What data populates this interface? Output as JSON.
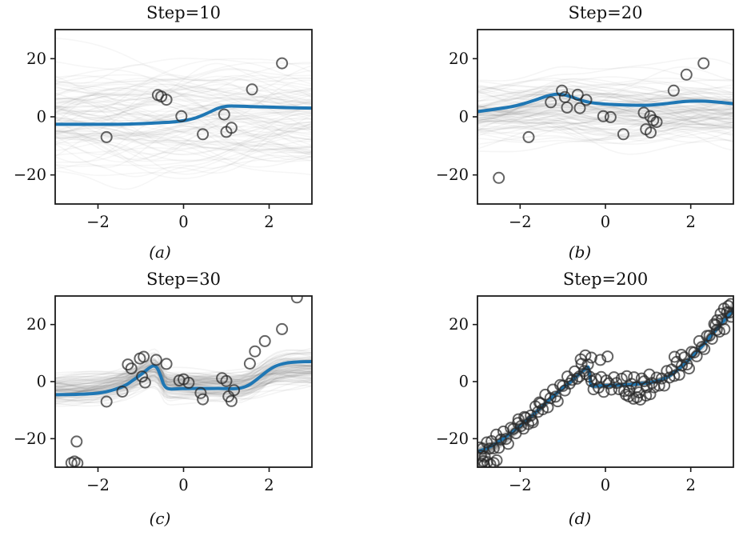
{
  "styles": {
    "background": "#ffffff",
    "mean_color": "#1f77b4",
    "mean_width": 4,
    "scatter_edge_color": "rgba(40,40,40,0.72)",
    "scatter_radius": 6.5,
    "scatter_stroke_width": 2,
    "ensemble_color": "#7a7a7a",
    "axis_color": "#1a1a1a",
    "axis_width": 1.8,
    "tick_width": 1.6,
    "tick_length": 6,
    "tick_label_color": "#111111",
    "tick_label_size": 19.5
  },
  "chart_data": [
    {
      "id": "a",
      "type": "line+scatter",
      "title": "Step=10",
      "caption": "(a)",
      "xlim": [
        -3,
        3
      ],
      "ylim": [
        -30,
        30
      ],
      "grid": false,
      "legend": null,
      "xticks": [
        {
          "v": -2,
          "label": "−2"
        },
        {
          "v": 0,
          "label": "0"
        },
        {
          "v": 2,
          "label": "2"
        }
      ],
      "yticks": [
        {
          "v": 20,
          "label": "20"
        },
        {
          "v": 0,
          "label": "0"
        },
        {
          "v": -20,
          "label": "−20"
        }
      ],
      "mean_line": [
        [
          -3,
          -2.6
        ],
        [
          -2.4,
          -2.6
        ],
        [
          -1.8,
          -2.6
        ],
        [
          -1.3,
          -2.5
        ],
        [
          -0.9,
          -2.3
        ],
        [
          -0.5,
          -2.0
        ],
        [
          -0.2,
          -1.7
        ],
        [
          0.05,
          -1.2
        ],
        [
          0.3,
          -0.3
        ],
        [
          0.55,
          1.2
        ],
        [
          0.8,
          2.9
        ],
        [
          1.0,
          3.6
        ],
        [
          1.2,
          3.7
        ],
        [
          1.6,
          3.5
        ],
        [
          2.1,
          3.3
        ],
        [
          2.6,
          3.1
        ],
        [
          3,
          3.0
        ]
      ],
      "scatter": [
        [
          -1.8,
          -7
        ],
        [
          -0.6,
          7.5
        ],
        [
          -0.52,
          7.0
        ],
        [
          -0.4,
          5.9
        ],
        [
          -0.05,
          0.2
        ],
        [
          0.45,
          -6
        ],
        [
          0.95,
          0.8
        ],
        [
          1.0,
          -5.2
        ],
        [
          1.12,
          -3.8
        ],
        [
          1.6,
          9.4
        ],
        [
          2.3,
          18.4
        ]
      ],
      "ensemble": {
        "count": 100,
        "seed": 3,
        "blend": 0.12,
        "base_sd": 10,
        "wiggle_amp": 7.5,
        "scale_jitter": 0.1,
        "alpha": 0.065,
        "width": 1.6
      }
    },
    {
      "id": "b",
      "type": "line+scatter",
      "title": "Step=20",
      "caption": "(b)",
      "xlim": [
        -3,
        3
      ],
      "ylim": [
        -30,
        30
      ],
      "grid": false,
      "legend": null,
      "xticks": [
        {
          "v": -2,
          "label": "−2"
        },
        {
          "v": 0,
          "label": "0"
        },
        {
          "v": 2,
          "label": "2"
        }
      ],
      "yticks": [
        {
          "v": 20,
          "label": "20"
        },
        {
          "v": 0,
          "label": "0"
        },
        {
          "v": -20,
          "label": "−20"
        }
      ],
      "mean_line": [
        [
          -3,
          1.8
        ],
        [
          -2.6,
          2.6
        ],
        [
          -2.2,
          3.5
        ],
        [
          -1.9,
          4.6
        ],
        [
          -1.6,
          6.0
        ],
        [
          -1.35,
          7.2
        ],
        [
          -1.15,
          7.8
        ],
        [
          -0.95,
          7.5
        ],
        [
          -0.75,
          6.6
        ],
        [
          -0.55,
          5.6
        ],
        [
          -0.35,
          4.9
        ],
        [
          -0.1,
          4.5
        ],
        [
          0.2,
          4.2
        ],
        [
          0.6,
          4.0
        ],
        [
          1.0,
          4.0
        ],
        [
          1.4,
          4.5
        ],
        [
          1.8,
          5.2
        ],
        [
          2.2,
          5.4
        ],
        [
          2.6,
          5.1
        ],
        [
          3,
          4.5
        ]
      ],
      "scatter": [
        [
          -2.5,
          -21
        ],
        [
          -1.8,
          -7
        ],
        [
          -1.28,
          5
        ],
        [
          -1.02,
          9
        ],
        [
          -0.95,
          6.8
        ],
        [
          -0.9,
          3.2
        ],
        [
          -0.65,
          7.6
        ],
        [
          -0.6,
          3
        ],
        [
          -0.45,
          5.8
        ],
        [
          -0.05,
          0.2
        ],
        [
          0.12,
          -0.1
        ],
        [
          0.42,
          -6
        ],
        [
          0.9,
          1.4
        ],
        [
          1.05,
          0.2
        ],
        [
          1.12,
          -1.2
        ],
        [
          1.2,
          -1.8
        ],
        [
          0.95,
          -4.3
        ],
        [
          1.06,
          -5.4
        ],
        [
          1.6,
          9
        ],
        [
          1.9,
          14.5
        ],
        [
          2.3,
          18.4
        ]
      ],
      "ensemble": {
        "count": 100,
        "seed": 7,
        "blend": 0.38,
        "base_sd": 6,
        "wiggle_amp": 5,
        "scale_jitter": 0.15,
        "alpha": 0.075,
        "width": 1.6
      }
    },
    {
      "id": "c",
      "type": "line+scatter",
      "title": "Step=30",
      "caption": "(c)",
      "xlim": [
        -3,
        3
      ],
      "ylim": [
        -30,
        30
      ],
      "grid": false,
      "legend": null,
      "xticks": [
        {
          "v": -2,
          "label": "−2"
        },
        {
          "v": 0,
          "label": "0"
        },
        {
          "v": 2,
          "label": "2"
        }
      ],
      "yticks": [
        {
          "v": 20,
          "label": "20"
        },
        {
          "v": 0,
          "label": "0"
        },
        {
          "v": -20,
          "label": "−20"
        }
      ],
      "mean_line": [
        [
          -3,
          -4.6
        ],
        [
          -2.6,
          -4.5
        ],
        [
          -2.2,
          -4.3
        ],
        [
          -1.9,
          -3.8
        ],
        [
          -1.6,
          -2.7
        ],
        [
          -1.35,
          -1.2
        ],
        [
          -1.15,
          0.8
        ],
        [
          -0.95,
          3.0
        ],
        [
          -0.8,
          4.8
        ],
        [
          -0.7,
          5.5
        ],
        [
          -0.62,
          4.8
        ],
        [
          -0.54,
          2.2
        ],
        [
          -0.47,
          -0.8
        ],
        [
          -0.4,
          -2.2
        ],
        [
          -0.3,
          -2.6
        ],
        [
          -0.1,
          -2.5
        ],
        [
          0.2,
          -2.4
        ],
        [
          0.6,
          -2.4
        ],
        [
          0.9,
          -2.4
        ],
        [
          1.15,
          -2.5
        ],
        [
          1.35,
          -2.2
        ],
        [
          1.55,
          -1.0
        ],
        [
          1.75,
          1.2
        ],
        [
          1.95,
          3.6
        ],
        [
          2.15,
          5.4
        ],
        [
          2.4,
          6.5
        ],
        [
          2.7,
          6.9
        ],
        [
          3,
          7.0
        ]
      ],
      "scatter": [
        [
          -2.62,
          -28.5
        ],
        [
          -2.55,
          -28
        ],
        [
          -2.48,
          -28.6
        ],
        [
          -2.5,
          -21
        ],
        [
          -1.8,
          -7
        ],
        [
          -1.43,
          -3.5
        ],
        [
          -1.3,
          6
        ],
        [
          -1.22,
          4.6
        ],
        [
          -1.02,
          8.1
        ],
        [
          -0.93,
          8.7
        ],
        [
          -0.97,
          1.8
        ],
        [
          -0.9,
          -0.3
        ],
        [
          -0.64,
          7.6
        ],
        [
          -0.4,
          6.2
        ],
        [
          -0.1,
          0.4
        ],
        [
          0.0,
          0.8
        ],
        [
          0.12,
          -0.4
        ],
        [
          0.4,
          -4
        ],
        [
          0.45,
          -6.2
        ],
        [
          0.9,
          1.2
        ],
        [
          1.0,
          0.2
        ],
        [
          1.05,
          -5.2
        ],
        [
          1.12,
          -6.8
        ],
        [
          1.18,
          -3
        ],
        [
          1.55,
          6.3
        ],
        [
          1.67,
          10.6
        ],
        [
          1.9,
          14.2
        ],
        [
          2.3,
          18.4
        ],
        [
          2.65,
          29.5
        ]
      ],
      "ensemble": {
        "count": 100,
        "seed": 11,
        "blend": 0.68,
        "base_sd": 3.8,
        "wiggle_amp": 3.6,
        "scale_jitter": 0.3,
        "alpha": 0.085,
        "width": 1.6
      }
    },
    {
      "id": "d",
      "type": "line+scatter",
      "title": "Step=200",
      "caption": "(d)",
      "xlim": [
        -3,
        3
      ],
      "ylim": [
        -30,
        30
      ],
      "grid": false,
      "legend": null,
      "xticks": [
        {
          "v": -2,
          "label": "−2"
        },
        {
          "v": 0,
          "label": "0"
        },
        {
          "v": 2,
          "label": "2"
        }
      ],
      "yticks": [
        {
          "v": 20,
          "label": "20"
        },
        {
          "v": 0,
          "label": "0"
        },
        {
          "v": -20,
          "label": "−20"
        }
      ],
      "mean_line": [
        [
          -3,
          -24.5
        ],
        [
          -2.8,
          -23.5
        ],
        [
          -2.6,
          -22.0
        ],
        [
          -2.4,
          -20.0
        ],
        [
          -2.2,
          -17.8
        ],
        [
          -2.0,
          -15.5
        ],
        [
          -1.8,
          -13.0
        ],
        [
          -1.6,
          -10.3
        ],
        [
          -1.4,
          -7.5
        ],
        [
          -1.2,
          -4.8
        ],
        [
          -1.0,
          -2.2
        ],
        [
          -0.85,
          -0.5
        ],
        [
          -0.7,
          1.5
        ],
        [
          -0.55,
          3.5
        ],
        [
          -0.45,
          4.6
        ],
        [
          -0.4,
          4.9
        ],
        [
          -0.36,
          1.0
        ],
        [
          -0.33,
          -1.4
        ],
        [
          -0.2,
          -1.5
        ],
        [
          0,
          -1.4
        ],
        [
          0.3,
          -1.2
        ],
        [
          0.6,
          -1.0
        ],
        [
          0.9,
          -0.6
        ],
        [
          1.1,
          -0.2
        ],
        [
          1.3,
          0.6
        ],
        [
          1.5,
          2.0
        ],
        [
          1.7,
          4.2
        ],
        [
          1.9,
          6.8
        ],
        [
          2.1,
          9.8
        ],
        [
          2.3,
          13.0
        ],
        [
          2.5,
          16.5
        ],
        [
          2.7,
          20.0
        ],
        [
          2.85,
          22.5
        ],
        [
          3,
          25.0
        ]
      ],
      "scatter": [
        [
          -2.95,
          -23.1
        ],
        [
          -2.92,
          -25.9
        ],
        [
          -2.88,
          -23.5
        ],
        [
          -2.83,
          -26.3
        ],
        [
          -2.78,
          -21.3
        ],
        [
          -2.72,
          -23.5
        ],
        [
          -2.67,
          -20.9
        ],
        [
          -2.62,
          -23.4
        ],
        [
          -2.56,
          -18.6
        ],
        [
          -2.5,
          -23.2
        ],
        [
          -2.45,
          -20.3
        ],
        [
          -2.39,
          -17.5
        ],
        [
          -2.33,
          -20.1
        ],
        [
          -2.28,
          -21.8
        ],
        [
          -2.22,
          -16.2
        ],
        [
          -2.16,
          -16.6
        ],
        [
          -2.1,
          -18.1
        ],
        [
          -2.04,
          -13.2
        ],
        [
          -1.98,
          -15.6
        ],
        [
          -1.92,
          -16.5
        ],
        [
          -1.87,
          -12.7
        ],
        [
          -1.81,
          -14.9
        ],
        [
          -1.75,
          -11.9
        ],
        [
          -1.7,
          -14.3
        ],
        [
          -1.64,
          -8.7
        ],
        [
          -1.58,
          -10.6
        ],
        [
          -1.52,
          -7.6
        ],
        [
          -1.47,
          -9.7
        ],
        [
          -1.41,
          -4.6
        ],
        [
          -1.35,
          -9.0
        ],
        [
          -1.29,
          -5.8
        ],
        [
          -1.23,
          -2.8
        ],
        [
          -1.17,
          -5.3
        ],
        [
          -1.12,
          -6.9
        ],
        [
          -1.06,
          -1.2
        ],
        [
          -1.0,
          -1.5
        ],
        [
          -0.95,
          -3.1
        ],
        [
          -0.89,
          1.8
        ],
        [
          -0.84,
          -0.7
        ],
        [
          -0.78,
          0.6
        ],
        [
          -0.72,
          3.6
        ],
        [
          -0.67,
          1.0
        ],
        [
          -0.61,
          1.8
        ],
        [
          -0.56,
          6.2
        ],
        [
          -0.5,
          3.7
        ],
        [
          -0.45,
          2.6
        ],
        [
          -0.41,
          6.0
        ],
        [
          -0.37,
          1.7
        ],
        [
          -0.33,
          0.2
        ],
        [
          -0.28,
          -2.7
        ],
        [
          -0.22,
          0.9
        ],
        [
          -0.16,
          -2.1
        ],
        [
          -0.1,
          1.6
        ],
        [
          -0.04,
          -3.6
        ],
        [
          0.02,
          0.4
        ],
        [
          0.08,
          -0.6
        ],
        [
          0.14,
          -2.8
        ],
        [
          0.2,
          1.5
        ],
        [
          0.26,
          -0.5
        ],
        [
          0.32,
          -2.7
        ],
        [
          0.38,
          1.0
        ],
        [
          0.44,
          -3.3
        ],
        [
          0.5,
          1.9
        ],
        [
          0.56,
          -3.2
        ],
        [
          0.61,
          -0.8
        ],
        [
          0.67,
          1.5
        ],
        [
          0.73,
          -2.0
        ],
        [
          0.79,
          -3.8
        ],
        [
          0.85,
          1.1
        ],
        [
          0.91,
          0.1
        ],
        [
          0.97,
          -2.0
        ],
        [
          1.03,
          2.5
        ],
        [
          1.09,
          -0.5
        ],
        [
          1.14,
          -2.0
        ],
        [
          1.2,
          1.4
        ],
        [
          1.26,
          -1.4
        ],
        [
          1.32,
          1.1
        ],
        [
          1.38,
          -1.4
        ],
        [
          1.44,
          3.7
        ],
        [
          1.5,
          1.4
        ],
        [
          1.55,
          4.2
        ],
        [
          1.61,
          2.0
        ],
        [
          1.67,
          6.9
        ],
        [
          1.73,
          2.4
        ],
        [
          1.79,
          5.6
        ],
        [
          1.85,
          8.5
        ],
        [
          1.91,
          6.0
        ],
        [
          1.96,
          4.6
        ],
        [
          2.02,
          10.4
        ],
        [
          2.08,
          10.2
        ],
        [
          2.14,
          8.9
        ],
        [
          2.2,
          14.2
        ],
        [
          2.26,
          12.1
        ],
        [
          2.32,
          11.4
        ],
        [
          2.38,
          16.0
        ],
        [
          2.44,
          16.1
        ],
        [
          2.5,
          15.0
        ],
        [
          2.55,
          20.2
        ],
        [
          2.61,
          18.1
        ],
        [
          2.67,
          17.5
        ],
        [
          2.73,
          21.7
        ],
        [
          2.79,
          18.4
        ],
        [
          2.85,
          24.3
        ],
        [
          2.91,
          24.2
        ],
        [
          2.95,
          22.7
        ],
        [
          -0.58,
          7.8
        ],
        [
          -0.47,
          9.2
        ],
        [
          -0.33,
          8.4
        ],
        [
          -0.12,
          7.6
        ],
        [
          0.05,
          8.8
        ],
        [
          0.55,
          -5.2
        ],
        [
          0.66,
          -6.0
        ],
        [
          0.74,
          -5.5
        ],
        [
          0.82,
          -6.3
        ],
        [
          0.95,
          -4.9
        ],
        [
          1.05,
          -4.4
        ],
        [
          0.48,
          -4.6
        ],
        [
          -2.9,
          -28.8
        ],
        [
          -2.84,
          -29.3
        ],
        [
          -2.77,
          -28.2
        ],
        [
          -2.7,
          -29.0
        ],
        [
          -2.62,
          -28.5
        ],
        [
          -2.55,
          -27.6
        ],
        [
          -2.86,
          -27.9
        ],
        [
          2.62,
          21.5
        ],
        [
          2.7,
          23.8
        ],
        [
          2.78,
          25.6
        ],
        [
          2.88,
          26.5
        ],
        [
          2.94,
          27.2
        ],
        [
          2.58,
          19.8
        ],
        [
          -1.9,
          -12.4
        ],
        [
          -1.72,
          -13.6
        ],
        [
          -2.05,
          -14.5
        ],
        [
          -1.55,
          -7.3
        ],
        [
          1.62,
          8.7
        ],
        [
          1.78,
          9.4
        ]
      ],
      "ensemble": {
        "count": 60,
        "seed": 19,
        "blend": 1.0,
        "base_sd": 0.5,
        "wiggle_amp": 0.7,
        "scale_jitter": 0.05,
        "alpha": 0.13,
        "width": 2.2
      }
    }
  ]
}
